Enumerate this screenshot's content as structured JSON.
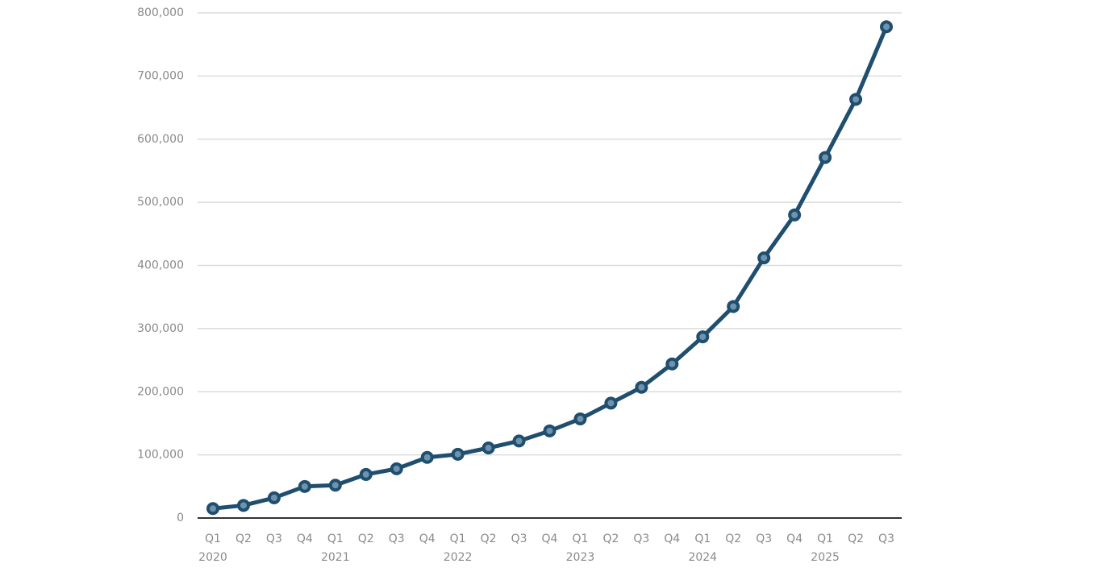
{
  "chart_data": {
    "type": "line",
    "categories": [
      "Q1",
      "Q2",
      "Q3",
      "Q4",
      "Q1",
      "Q2",
      "Q3",
      "Q4",
      "Q1",
      "Q2",
      "Q3",
      "Q4",
      "Q1",
      "Q2",
      "Q3",
      "Q4",
      "Q1",
      "Q2",
      "Q3",
      "Q4",
      "Q1",
      "Q2",
      "Q3"
    ],
    "category_years": [
      "2020",
      null,
      null,
      null,
      "2021",
      null,
      null,
      null,
      "2022",
      null,
      null,
      null,
      "2023",
      null,
      null,
      null,
      "2024",
      null,
      null,
      null,
      "2025",
      null,
      null
    ],
    "values": [
      15000,
      20000,
      32000,
      50000,
      52000,
      69000,
      78000,
      96000,
      101000,
      111000,
      122000,
      138000,
      157000,
      182000,
      207000,
      244000,
      287000,
      335000,
      412000,
      480000,
      571000,
      663000,
      778000
    ],
    "color": "#1f4e6e",
    "ylim": [
      0,
      800000
    ],
    "yticks": [
      0,
      {
        "value": 100000,
        "label": "100,000"
      },
      {
        "value": 200000,
        "label": "200,000"
      },
      {
        "value": 300000,
        "label": "300,000"
      },
      {
        "value": 400000,
        "label": "400,000"
      },
      {
        "value": 500000,
        "label": "500,000"
      },
      {
        "value": 600000,
        "label": "600,000"
      },
      {
        "value": 700000,
        "label": "700,000"
      },
      {
        "value": 800000,
        "label": "800,000"
      }
    ],
    "grid": true
  }
}
